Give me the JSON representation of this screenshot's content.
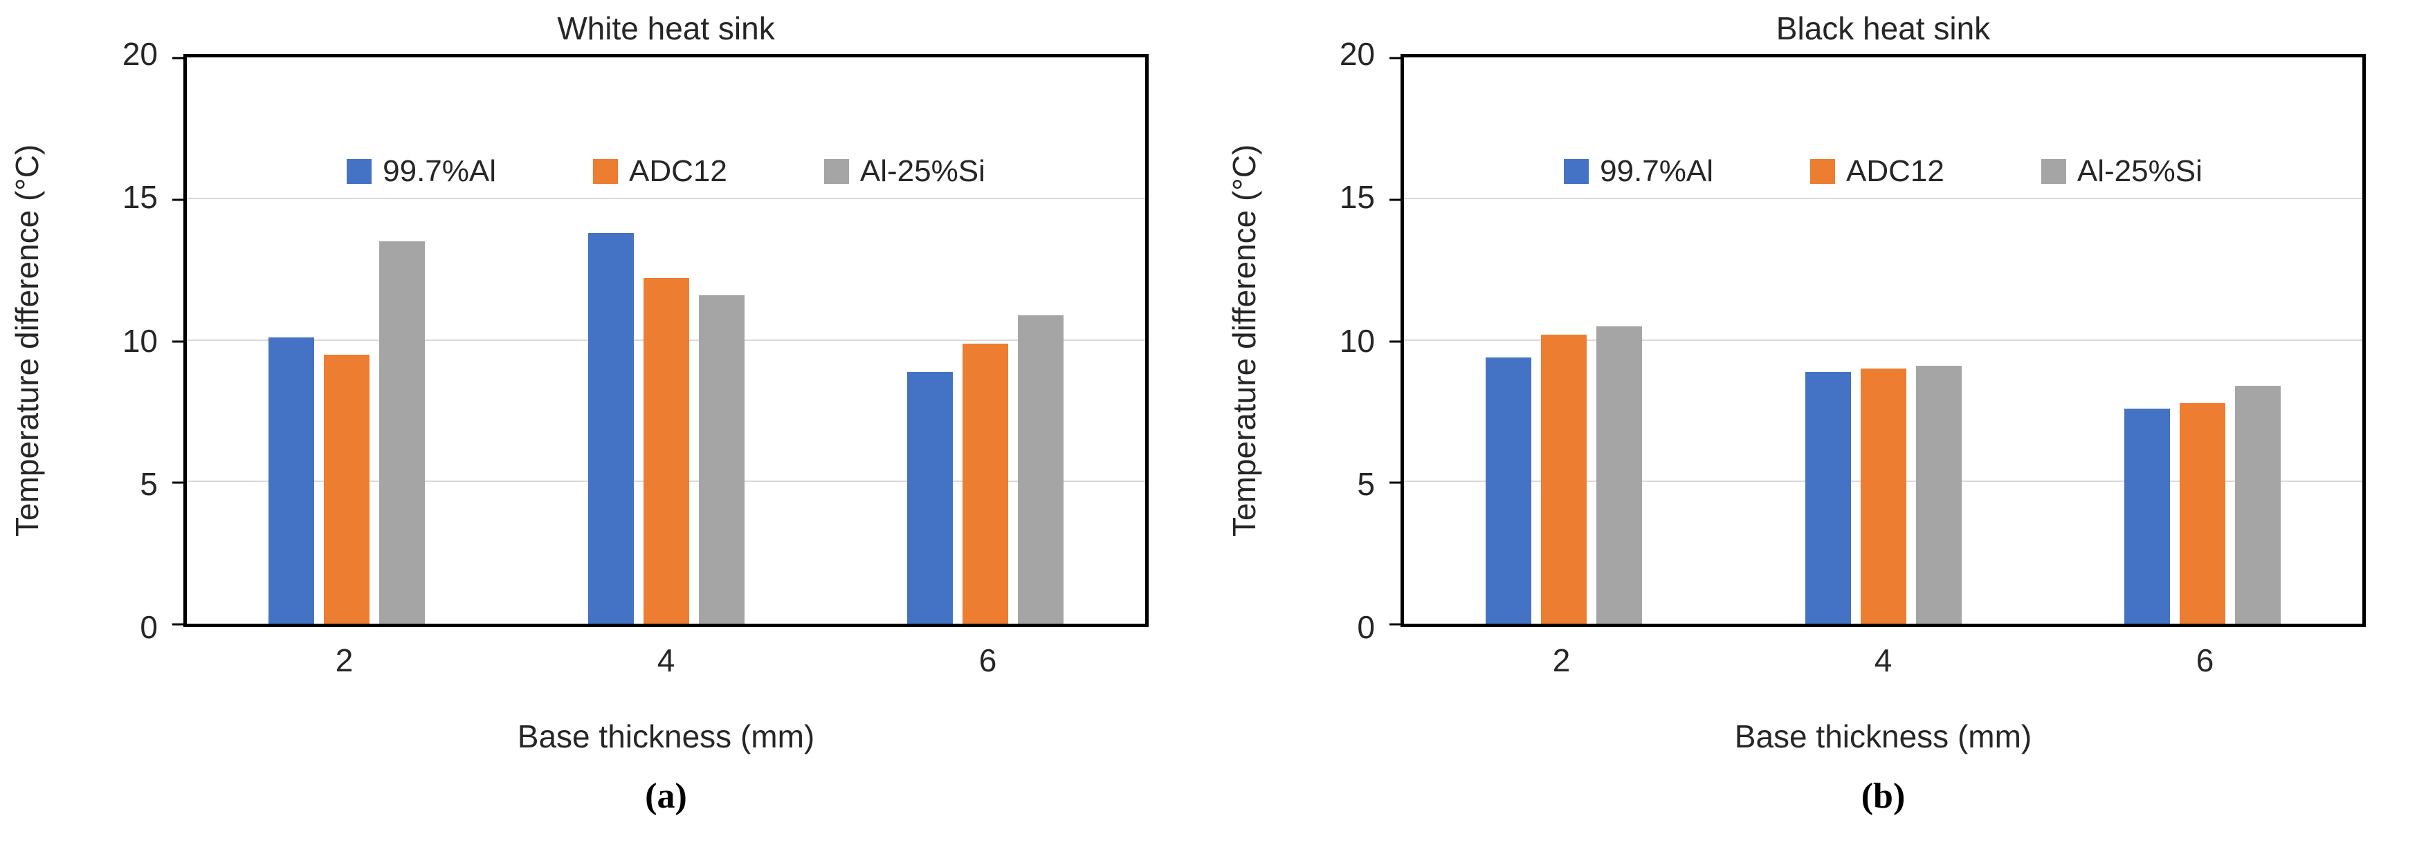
{
  "figure": {
    "background": "#ffffff"
  },
  "colors": {
    "blue": "#4472C4",
    "orange": "#ED7D31",
    "gray": "#A5A5A5",
    "grid": "#d9d9d9",
    "frame": "#000000"
  },
  "chart_data": [
    {
      "type": "bar",
      "panel_label": "(a)",
      "title": "White heat sink",
      "xlabel": "Base thickness (mm)",
      "ylabel": "Temperature difference (°C)",
      "categories": [
        "2",
        "4",
        "6"
      ],
      "series": [
        {
          "name": "99.7%Al",
          "color": "#4472C4",
          "values": [
            10.1,
            13.8,
            8.9
          ]
        },
        {
          "name": "ADC12",
          "color": "#ED7D31",
          "values": [
            9.5,
            12.2,
            9.9
          ]
        },
        {
          "name": "Al-25%Si",
          "color": "#A5A5A5",
          "values": [
            13.5,
            11.6,
            10.9
          ]
        }
      ],
      "ylim": [
        0,
        20
      ],
      "yticks": [
        0,
        5,
        10,
        15,
        20
      ],
      "gridlines": [
        5,
        10,
        15
      ],
      "grid": true,
      "legend_position": "top-inside"
    },
    {
      "type": "bar",
      "panel_label": "(b)",
      "title": "Black heat sink",
      "xlabel": "Base thickness (mm)",
      "ylabel": "Temperature difference (°C)",
      "categories": [
        "2",
        "4",
        "6"
      ],
      "series": [
        {
          "name": "99.7%Al",
          "color": "#4472C4",
          "values": [
            9.4,
            8.9,
            7.6
          ]
        },
        {
          "name": "ADC12",
          "color": "#ED7D31",
          "values": [
            10.2,
            9.0,
            7.8
          ]
        },
        {
          "name": "Al-25%Si",
          "color": "#A5A5A5",
          "values": [
            10.5,
            9.1,
            8.4
          ]
        }
      ],
      "ylim": [
        0,
        20
      ],
      "yticks": [
        0,
        5,
        10,
        15,
        20
      ],
      "gridlines": [
        5,
        10,
        15
      ],
      "grid": true,
      "legend_position": "top-inside"
    }
  ]
}
